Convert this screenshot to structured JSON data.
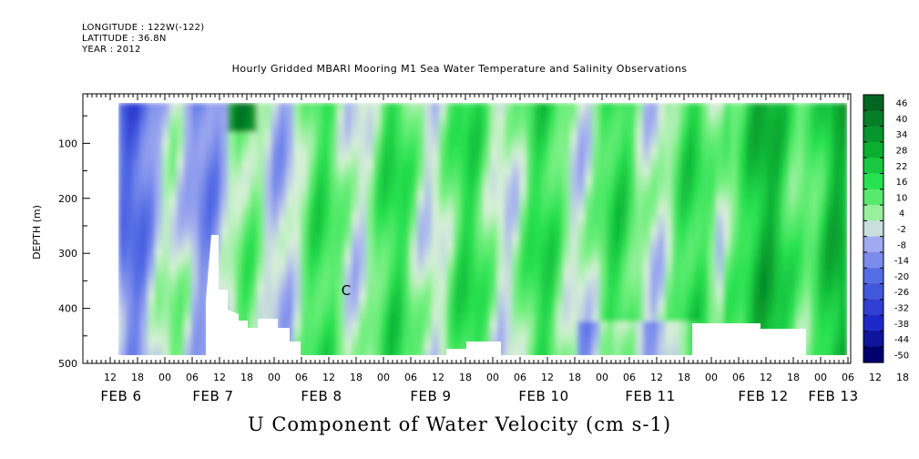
{
  "header": {
    "longitude": "LONGITUDE : 122W(-122)",
    "latitude": "LATITUDE : 36.8N",
    "year": "YEAR : 2012"
  },
  "chart_data": {
    "type": "heatmap",
    "title": "Hourly Gridded MBARI Mooring M1 Sea Water Temperature and Salinity Observations",
    "xlabel": "U Component of Water Velocity (cm s-1)",
    "ylabel": "DEPTH (m)",
    "ylim": [
      500,
      10
    ],
    "y_ticks": [
      100,
      200,
      300,
      400,
      500
    ],
    "x_hour_ticks": [
      "12",
      "18",
      "00",
      "06",
      "12",
      "18",
      "00",
      "06",
      "12",
      "18",
      "00",
      "06",
      "12",
      "18",
      "00",
      "06",
      "12",
      "18",
      "00",
      "06",
      "12",
      "18",
      "00",
      "06",
      "12",
      "18",
      "00",
      "06",
      "12",
      "18",
      "00"
    ],
    "x_day_labels": [
      "FEB 6",
      "FEB 7",
      "FEB 8",
      "FEB 9",
      "FEB 10",
      "FEB 11",
      "FEB 12",
      "FEB 13"
    ],
    "colorbar": {
      "levels": [
        46,
        40,
        34,
        28,
        22,
        16,
        10,
        4,
        -2,
        -8,
        -14,
        -20,
        -26,
        -32,
        -38,
        -44,
        -50
      ],
      "range": [
        -50,
        50
      ]
    },
    "annotation": "C"
  }
}
